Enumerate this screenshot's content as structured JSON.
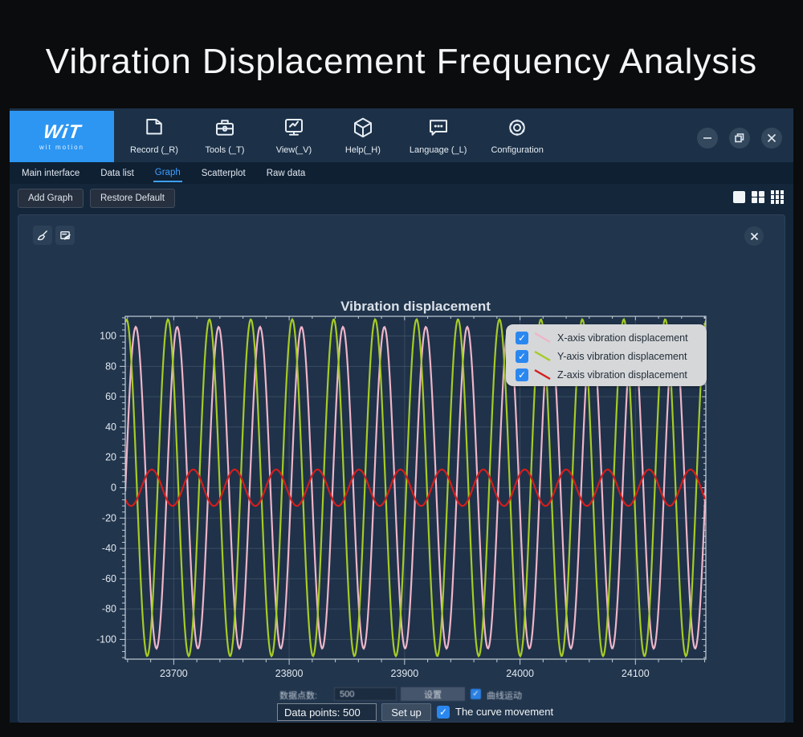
{
  "page_title": "Vibration Displacement Frequency Analysis",
  "colors": {
    "accent": "#3f9fff",
    "checkbox_blue": "#2b87f0",
    "logo_blue": "#2d96f2",
    "series_x_pink": "#efb5c9",
    "series_y_green": "#a6cb25",
    "series_z_red": "#d51d1d"
  },
  "app": {
    "logo": {
      "brand": "WiT",
      "sub": "wit motion"
    },
    "menu": [
      {
        "label": "Record (_R)",
        "icon": "document-icon"
      },
      {
        "label": "Tools (_T)",
        "icon": "briefcase-icon"
      },
      {
        "label": "View(_V)",
        "icon": "monitor-chart-icon"
      },
      {
        "label": "Help(_H)",
        "icon": "cube-icon"
      },
      {
        "label": "Language (_L)",
        "icon": "speech-bubble-icon"
      },
      {
        "label": "Configuration",
        "icon": "gear-icon"
      }
    ],
    "window_controls": [
      "minimize",
      "restore",
      "close"
    ],
    "tabs": [
      {
        "label": "Main interface",
        "active": false
      },
      {
        "label": "Data list",
        "active": false
      },
      {
        "label": "Graph",
        "active": true
      },
      {
        "label": "Scatterplot",
        "active": false
      },
      {
        "label": "Raw data",
        "active": false
      }
    ],
    "subbar": {
      "add_graph": "Add Graph",
      "restore_default": "Restore Default",
      "layout_icons": [
        "single-pane-icon",
        "grid-2x2-icon",
        "grid-3x3-icon"
      ]
    },
    "panel": {
      "tool_icons": [
        "clean-brush-icon",
        "edit-note-icon"
      ],
      "close": "close-icon"
    },
    "bottom_bar": {
      "cn": {
        "label": "数据点数:",
        "value": "500",
        "setup": "设置",
        "checkbox_label": "曲线运动",
        "checked": true
      },
      "en": {
        "label": "Data points: 500",
        "setup": "Set up",
        "checkbox_label": "The curve movement",
        "checked": true
      }
    }
  },
  "chart_data": {
    "type": "line",
    "title": "Vibration displacement",
    "xlabel": "",
    "ylabel": "",
    "x_range": [
      23658,
      24161
    ],
    "y_range": [
      -113,
      113
    ],
    "x_ticks": [
      23700,
      23800,
      23900,
      24000,
      24100
    ],
    "y_ticks": [
      100,
      80,
      60,
      40,
      20,
      0,
      -20,
      -40,
      -60,
      -80,
      -100
    ],
    "x_minor_step": 20,
    "y_minor_step": 4,
    "grid": true,
    "legend_position": "top-right",
    "series": [
      {
        "name": "X-axis vibration displacement",
        "color": "#efb5c9",
        "waveform": "sine",
        "amplitude": 106,
        "period": 35.9,
        "peak_x": 23703,
        "checked": true
      },
      {
        "name": "Y-axis vibration displacement",
        "color": "#a6cb25",
        "waveform": "sine",
        "amplitude": 111,
        "period": 35.9,
        "peak_x": 23695,
        "checked": true
      },
      {
        "name": "Z-axis vibration displacement",
        "color": "#d51d1d",
        "waveform": "sine",
        "amplitude": 12,
        "period": 35.9,
        "peak_x": 23681,
        "checked": true
      }
    ]
  }
}
